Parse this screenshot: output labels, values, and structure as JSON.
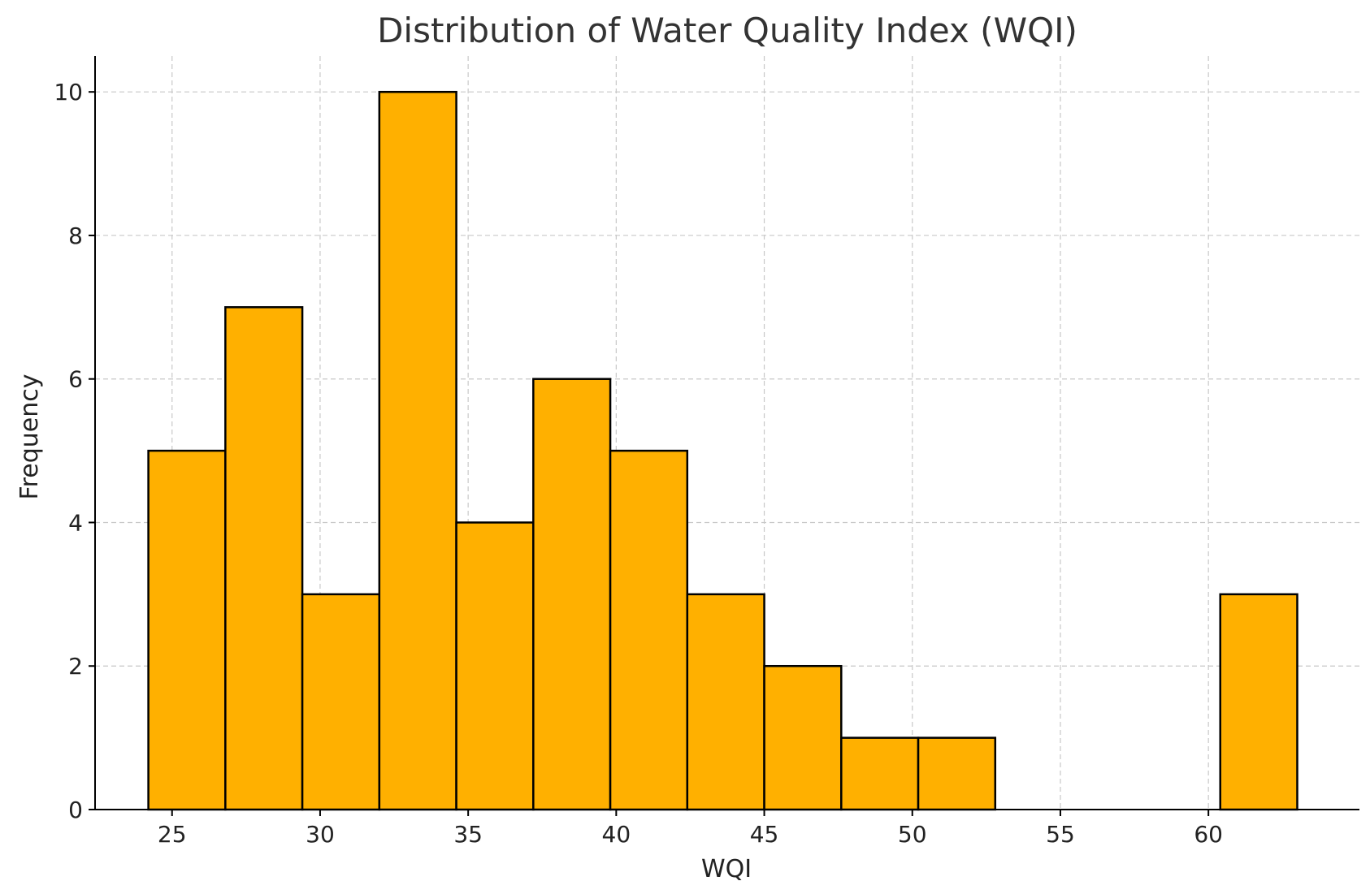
{
  "chart_data": {
    "type": "bar",
    "title": "Distribution of Water Quality Index (WQI)",
    "xlabel": "WQI",
    "ylabel": "Frequency",
    "xlim": [
      22.4,
      65.1
    ],
    "ylim": [
      0,
      10.5
    ],
    "xticks": [
      25,
      30,
      35,
      40,
      45,
      50,
      55,
      60
    ],
    "yticks": [
      0,
      2,
      4,
      6,
      8,
      10
    ],
    "grid": true,
    "bar_color": "#FFB000",
    "edge_color": "#000000",
    "bins": [
      {
        "x0": 24.2,
        "x1": 26.8,
        "count": 5
      },
      {
        "x0": 26.8,
        "x1": 29.4,
        "count": 7
      },
      {
        "x0": 29.4,
        "x1": 32.0,
        "count": 3
      },
      {
        "x0": 32.0,
        "x1": 34.6,
        "count": 10
      },
      {
        "x0": 34.6,
        "x1": 37.2,
        "count": 4
      },
      {
        "x0": 37.2,
        "x1": 39.8,
        "count": 6
      },
      {
        "x0": 39.8,
        "x1": 42.4,
        "count": 5
      },
      {
        "x0": 42.4,
        "x1": 45.0,
        "count": 3
      },
      {
        "x0": 45.0,
        "x1": 47.6,
        "count": 2
      },
      {
        "x0": 47.6,
        "x1": 50.2,
        "count": 1
      },
      {
        "x0": 50.2,
        "x1": 52.8,
        "count": 1
      },
      {
        "x0": 52.8,
        "x1": 55.4,
        "count": 0
      },
      {
        "x0": 55.4,
        "x1": 58.0,
        "count": 0
      },
      {
        "x0": 58.0,
        "x1": 60.4,
        "count": 0
      },
      {
        "x0": 60.4,
        "x1": 63.0,
        "count": 3
      }
    ]
  }
}
